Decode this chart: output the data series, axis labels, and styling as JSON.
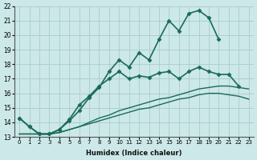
{
  "xlabel": "Humidex (Indice chaleur)",
  "ylabel": "",
  "bg_color": "#cce8e8",
  "grid_color": "#aacccc",
  "line_color": "#1a6b5a",
  "xlim": [
    -0.5,
    23.5
  ],
  "ylim": [
    13,
    22
  ],
  "xticks": [
    0,
    1,
    2,
    3,
    4,
    5,
    6,
    7,
    8,
    9,
    10,
    11,
    12,
    13,
    14,
    15,
    16,
    17,
    18,
    19,
    20,
    21,
    22,
    23
  ],
  "yticks": [
    13,
    14,
    15,
    16,
    17,
    18,
    19,
    20,
    21,
    22
  ],
  "series": [
    {
      "x": [
        0,
        1,
        2,
        3,
        4,
        5,
        6,
        7,
        8,
        9,
        10,
        11,
        12,
        13,
        14,
        15,
        16,
        17,
        18,
        19,
        20
      ],
      "y": [
        14.3,
        13.7,
        13.2,
        13.2,
        13.5,
        14.1,
        14.8,
        15.7,
        16.4,
        17.5,
        18.3,
        17.8,
        18.8,
        18.3,
        19.7,
        21.0,
        20.3,
        21.5,
        21.7,
        21.2,
        19.7
      ],
      "marker": "D",
      "markersize": 2.5,
      "linewidth": 1.2,
      "linestyle": "-"
    },
    {
      "x": [
        0,
        1,
        2,
        3,
        4,
        5,
        6,
        7,
        8,
        9,
        10,
        11,
        12,
        13,
        14,
        15,
        16,
        17,
        18,
        19,
        20,
        21,
        22
      ],
      "y": [
        14.3,
        13.7,
        13.2,
        13.2,
        13.5,
        14.2,
        15.2,
        15.8,
        16.5,
        17.0,
        17.5,
        17.0,
        17.2,
        17.1,
        17.4,
        17.5,
        17.0,
        17.5,
        17.8,
        17.5,
        17.3,
        17.3,
        16.5
      ],
      "marker": "D",
      "markersize": 2.5,
      "linewidth": 1.2,
      "linestyle": "-"
    },
    {
      "x": [
        0,
        1,
        2,
        3,
        4,
        5,
        6,
        7,
        8,
        9,
        10,
        11,
        12,
        13,
        14,
        15,
        16,
        17,
        18,
        19,
        20,
        21,
        22,
        23
      ],
      "y": [
        13.2,
        13.2,
        13.2,
        13.2,
        13.3,
        13.5,
        13.7,
        13.9,
        14.1,
        14.3,
        14.5,
        14.7,
        14.9,
        15.0,
        15.2,
        15.4,
        15.6,
        15.7,
        15.9,
        16.0,
        16.0,
        15.9,
        15.8,
        15.6
      ],
      "marker": null,
      "markersize": 0,
      "linewidth": 1.0,
      "linestyle": "-"
    },
    {
      "x": [
        0,
        1,
        2,
        3,
        4,
        5,
        6,
        7,
        8,
        9,
        10,
        11,
        12,
        13,
        14,
        15,
        16,
        17,
        18,
        19,
        20,
        21,
        22,
        23
      ],
      "y": [
        13.2,
        13.2,
        13.2,
        13.2,
        13.3,
        13.5,
        13.7,
        14.0,
        14.3,
        14.5,
        14.8,
        15.0,
        15.2,
        15.4,
        15.6,
        15.7,
        15.9,
        16.1,
        16.3,
        16.4,
        16.5,
        16.5,
        16.4,
        16.3
      ],
      "marker": null,
      "markersize": 0,
      "linewidth": 1.0,
      "linestyle": "-"
    }
  ]
}
